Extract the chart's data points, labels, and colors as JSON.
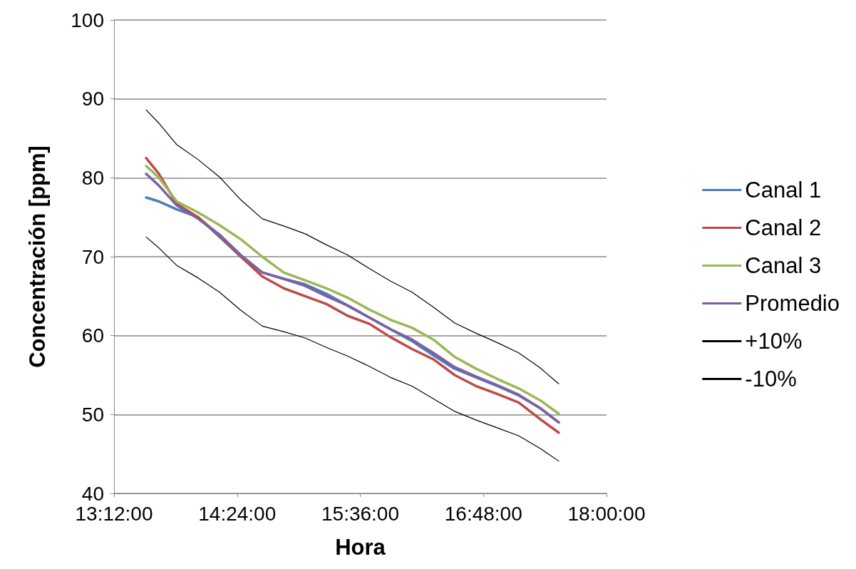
{
  "chart_data": {
    "type": "line",
    "xlabel": "Hora",
    "ylabel": "Concentración [ppm]",
    "x": [
      13.513,
      13.638,
      13.811,
      14.02,
      14.228,
      14.436,
      14.645,
      14.853,
      15.062,
      15.27,
      15.478,
      15.687,
      15.895,
      16.104,
      16.312,
      16.52,
      16.729,
      16.937,
      17.145,
      17.354,
      17.534
    ],
    "series": [
      {
        "name": "Canal 1",
        "color": "#4a7ebb",
        "values": [
          77.5,
          77.0,
          76.0,
          75.0,
          72.5,
          70.0,
          68.0,
          67.2,
          66.5,
          65.3,
          63.8,
          62.3,
          60.8,
          59.3,
          57.5,
          55.8,
          54.7,
          53.6,
          52.4,
          50.8,
          49.0
        ]
      },
      {
        "name": "Canal 2",
        "color": "#be4b48",
        "values": [
          82.5,
          80.5,
          76.7,
          75.0,
          72.7,
          70.0,
          67.5,
          66.0,
          65.0,
          64.0,
          62.5,
          61.5,
          59.8,
          58.3,
          57.0,
          55.0,
          53.6,
          52.6,
          51.5,
          49.4,
          47.7
        ]
      },
      {
        "name": "Canal 3",
        "color": "#98b954",
        "values": [
          81.5,
          80.0,
          77.0,
          75.6,
          74.0,
          72.2,
          70.0,
          68.0,
          67.0,
          66.0,
          64.8,
          63.3,
          62.0,
          61.0,
          59.5,
          57.3,
          55.8,
          54.5,
          53.3,
          51.8,
          50.1
        ]
      },
      {
        "name": "Promedio",
        "color": "#7d60a0",
        "values": [
          80.5,
          79.0,
          76.5,
          74.8,
          72.8,
          70.2,
          68.0,
          67.2,
          66.3,
          65.0,
          63.8,
          62.3,
          60.8,
          59.5,
          57.8,
          56.0,
          54.8,
          53.7,
          52.5,
          50.8,
          49.0
        ]
      },
      {
        "name": "+10%",
        "color": "#000000",
        "values": [
          88.6,
          86.9,
          84.2,
          82.3,
          80.1,
          77.2,
          74.8,
          73.9,
          72.9,
          71.5,
          70.2,
          68.5,
          66.9,
          65.5,
          63.6,
          61.6,
          60.3,
          59.1,
          57.8,
          55.9,
          53.9
        ]
      },
      {
        "name": "-10%",
        "color": "#000000",
        "values": [
          72.5,
          71.1,
          68.9,
          67.3,
          65.5,
          63.2,
          61.2,
          60.5,
          59.7,
          58.5,
          57.4,
          56.1,
          54.7,
          53.6,
          52.0,
          50.4,
          49.3,
          48.3,
          47.3,
          45.7,
          44.1
        ]
      }
    ],
    "xlim": [
      13.2,
      18.0
    ],
    "xticks": [
      {
        "value": 13.2,
        "label": "13:12:00"
      },
      {
        "value": 14.4,
        "label": "14:24:00"
      },
      {
        "value": 15.6,
        "label": "15:36:00"
      },
      {
        "value": 16.8,
        "label": "16:48:00"
      },
      {
        "value": 18.0,
        "label": "18:00:00"
      }
    ],
    "ylim": [
      40,
      100
    ],
    "yticks": [
      40,
      50,
      60,
      70,
      80,
      90,
      100
    ],
    "grid": "y",
    "legend": "right",
    "marker": "none",
    "line_style": "solid"
  }
}
